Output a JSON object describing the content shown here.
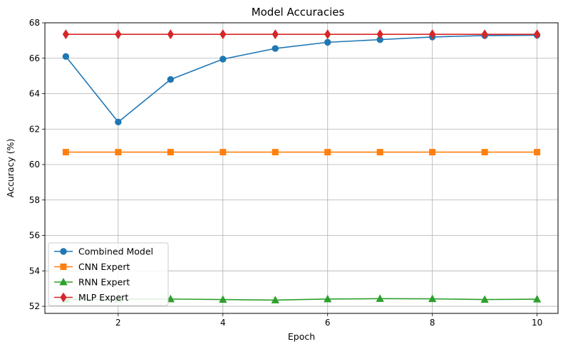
{
  "chart_data": {
    "type": "line",
    "title": "Model Accuracies",
    "xlabel": "Epoch",
    "ylabel": "Accuracy (%)",
    "x": [
      1,
      2,
      3,
      4,
      5,
      6,
      7,
      8,
      9,
      10
    ],
    "xlim": [
      0.6,
      10.4
    ],
    "ylim": [
      51.6,
      68.0
    ],
    "xticks": [
      2,
      4,
      6,
      8,
      10
    ],
    "yticks": [
      52,
      54,
      56,
      58,
      60,
      62,
      64,
      66,
      68
    ],
    "grid": true,
    "legend_position": "lower-left",
    "series": [
      {
        "name": "Combined Model",
        "color": "#1f77b4",
        "marker": "circle",
        "values": [
          66.1,
          62.4,
          64.8,
          65.95,
          66.55,
          66.9,
          67.05,
          67.2,
          67.28,
          67.3
        ]
      },
      {
        "name": "CNN Expert",
        "color": "#ff7f0e",
        "marker": "square",
        "values": [
          60.7,
          60.7,
          60.7,
          60.7,
          60.7,
          60.7,
          60.7,
          60.7,
          60.7,
          60.7
        ]
      },
      {
        "name": "RNN Expert",
        "color": "#2ca02c",
        "marker": "triangle",
        "values": [
          52.38,
          52.4,
          52.41,
          52.38,
          52.35,
          52.41,
          52.43,
          52.42,
          52.38,
          52.4
        ]
      },
      {
        "name": "MLP Expert",
        "color": "#d62728",
        "marker": "diamond",
        "values": [
          67.35,
          67.35,
          67.35,
          67.35,
          67.35,
          67.35,
          67.35,
          67.35,
          67.35,
          67.35
        ]
      }
    ]
  }
}
